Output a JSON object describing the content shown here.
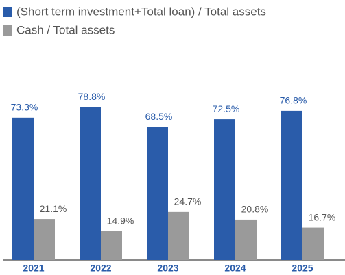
{
  "chart_data": {
    "type": "bar",
    "categories": [
      "2021",
      "2022",
      "2023",
      "2024",
      "2025"
    ],
    "series": [
      {
        "name": "(Short term investment+Total loan) / Total assets",
        "color": "#2a5caa",
        "values": [
          73.3,
          78.8,
          68.5,
          72.5,
          76.8
        ],
        "value_labels": [
          "73.3%",
          "78.8%",
          "68.5%",
          "72.5%",
          "76.8%"
        ]
      },
      {
        "name": "Cash / Total assets",
        "color": "#9a9a9a",
        "values": [
          21.1,
          14.9,
          24.7,
          20.8,
          16.7
        ],
        "value_labels": [
          "21.1%",
          "14.9%",
          "24.7%",
          "20.8%",
          "16.7%"
        ]
      }
    ]
  }
}
